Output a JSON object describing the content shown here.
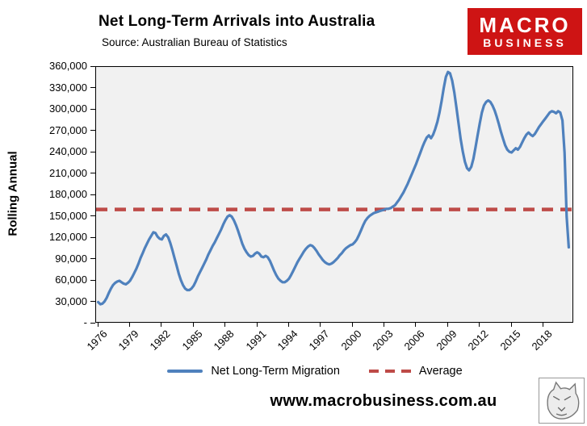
{
  "header": {
    "title": "Net Long-Term Arrivals into Australia",
    "source": "Source: Australian Bureau of Statistics"
  },
  "logo": {
    "line1": "MACRO",
    "line2": "BUSINESS",
    "bg": "#CE1414"
  },
  "footer": {
    "url": "www.macrobusiness.com.au"
  },
  "chart_data": {
    "type": "line",
    "title": "Net Long-Term Arrivals into Australia",
    "subtitle": "Source: Australian Bureau of Statistics",
    "xlabel": "",
    "ylabel": "Rolling Annual",
    "ylim": [
      0,
      360000
    ],
    "y_tick_step": 30000,
    "y_tick_labels": [
      "-",
      "30,000",
      "60,000",
      "90,000",
      "120,000",
      "150,000",
      "180,000",
      "210,000",
      "240,000",
      "270,000",
      "300,000",
      "330,000",
      "360,000"
    ],
    "x_tick_years": [
      1976,
      1979,
      1982,
      1985,
      1988,
      1991,
      1994,
      1997,
      2000,
      2003,
      2006,
      2009,
      2012,
      2015,
      2018
    ],
    "x_range": [
      1975.8,
      2020.9
    ],
    "grid": false,
    "plot_bg": "#f1f1f1",
    "legend_position": "bottom",
    "average": {
      "name": "Average",
      "color": "#BE4B48",
      "value": 160000
    },
    "series": [
      {
        "name": "Net Long-Term Migration",
        "color": "#4F81BD",
        "points": [
          [
            1976.0,
            30000
          ],
          [
            1976.2,
            27000
          ],
          [
            1976.4,
            28000
          ],
          [
            1976.6,
            31000
          ],
          [
            1976.8,
            36000
          ],
          [
            1977.0,
            43000
          ],
          [
            1977.2,
            49000
          ],
          [
            1977.4,
            54000
          ],
          [
            1977.6,
            57000
          ],
          [
            1977.8,
            59000
          ],
          [
            1978.0,
            60000
          ],
          [
            1978.2,
            58000
          ],
          [
            1978.4,
            56000
          ],
          [
            1978.6,
            55000
          ],
          [
            1978.8,
            57000
          ],
          [
            1979.0,
            60000
          ],
          [
            1979.2,
            65000
          ],
          [
            1979.4,
            71000
          ],
          [
            1979.6,
            77000
          ],
          [
            1979.8,
            84000
          ],
          [
            1980.0,
            92000
          ],
          [
            1980.2,
            99000
          ],
          [
            1980.4,
            106000
          ],
          [
            1980.6,
            112000
          ],
          [
            1980.8,
            118000
          ],
          [
            1981.0,
            123000
          ],
          [
            1981.2,
            128000
          ],
          [
            1981.4,
            127000
          ],
          [
            1981.6,
            122000
          ],
          [
            1981.8,
            119000
          ],
          [
            1982.0,
            118000
          ],
          [
            1982.2,
            123000
          ],
          [
            1982.4,
            125000
          ],
          [
            1982.6,
            121000
          ],
          [
            1982.8,
            113000
          ],
          [
            1983.0,
            103000
          ],
          [
            1983.2,
            92000
          ],
          [
            1983.4,
            81000
          ],
          [
            1983.6,
            70000
          ],
          [
            1983.8,
            61000
          ],
          [
            1984.0,
            54000
          ],
          [
            1984.2,
            49000
          ],
          [
            1984.4,
            47000
          ],
          [
            1984.6,
            47000
          ],
          [
            1984.8,
            49000
          ],
          [
            1985.0,
            53000
          ],
          [
            1985.2,
            59000
          ],
          [
            1985.4,
            66000
          ],
          [
            1985.6,
            72000
          ],
          [
            1985.8,
            78000
          ],
          [
            1986.0,
            84000
          ],
          [
            1986.2,
            90000
          ],
          [
            1986.4,
            97000
          ],
          [
            1986.6,
            103000
          ],
          [
            1986.8,
            109000
          ],
          [
            1987.0,
            114000
          ],
          [
            1987.2,
            120000
          ],
          [
            1987.4,
            126000
          ],
          [
            1987.6,
            132000
          ],
          [
            1987.8,
            139000
          ],
          [
            1988.0,
            145000
          ],
          [
            1988.2,
            150000
          ],
          [
            1988.4,
            152000
          ],
          [
            1988.6,
            150000
          ],
          [
            1988.8,
            145000
          ],
          [
            1989.0,
            138000
          ],
          [
            1989.2,
            130000
          ],
          [
            1989.4,
            121000
          ],
          [
            1989.6,
            112000
          ],
          [
            1989.8,
            105000
          ],
          [
            1990.0,
            100000
          ],
          [
            1990.2,
            96000
          ],
          [
            1990.4,
            94000
          ],
          [
            1990.6,
            95000
          ],
          [
            1990.8,
            98000
          ],
          [
            1991.0,
            100000
          ],
          [
            1991.2,
            98000
          ],
          [
            1991.4,
            94000
          ],
          [
            1991.6,
            93000
          ],
          [
            1991.8,
            95000
          ],
          [
            1992.0,
            93000
          ],
          [
            1992.2,
            88000
          ],
          [
            1992.4,
            81000
          ],
          [
            1992.6,
            74000
          ],
          [
            1992.8,
            68000
          ],
          [
            1993.0,
            63000
          ],
          [
            1993.2,
            60000
          ],
          [
            1993.4,
            58000
          ],
          [
            1993.6,
            58000
          ],
          [
            1993.8,
            60000
          ],
          [
            1994.0,
            63000
          ],
          [
            1994.2,
            68000
          ],
          [
            1994.4,
            74000
          ],
          [
            1994.6,
            80000
          ],
          [
            1994.8,
            86000
          ],
          [
            1995.0,
            91000
          ],
          [
            1995.2,
            96000
          ],
          [
            1995.4,
            101000
          ],
          [
            1995.6,
            105000
          ],
          [
            1995.8,
            108000
          ],
          [
            1996.0,
            110000
          ],
          [
            1996.2,
            109000
          ],
          [
            1996.4,
            106000
          ],
          [
            1996.6,
            102000
          ],
          [
            1996.8,
            97000
          ],
          [
            1997.0,
            93000
          ],
          [
            1997.2,
            89000
          ],
          [
            1997.4,
            86000
          ],
          [
            1997.6,
            84000
          ],
          [
            1997.8,
            83000
          ],
          [
            1998.0,
            84000
          ],
          [
            1998.2,
            86000
          ],
          [
            1998.4,
            89000
          ],
          [
            1998.6,
            92000
          ],
          [
            1998.8,
            96000
          ],
          [
            1999.0,
            99000
          ],
          [
            1999.2,
            103000
          ],
          [
            1999.4,
            106000
          ],
          [
            1999.6,
            108000
          ],
          [
            1999.8,
            110000
          ],
          [
            2000.0,
            111000
          ],
          [
            2000.2,
            114000
          ],
          [
            2000.4,
            118000
          ],
          [
            2000.6,
            124000
          ],
          [
            2000.8,
            131000
          ],
          [
            2001.0,
            138000
          ],
          [
            2001.2,
            144000
          ],
          [
            2001.4,
            148000
          ],
          [
            2001.6,
            151000
          ],
          [
            2001.8,
            153000
          ],
          [
            2002.0,
            155000
          ],
          [
            2002.2,
            156000
          ],
          [
            2002.4,
            157000
          ],
          [
            2002.6,
            158000
          ],
          [
            2002.8,
            159000
          ],
          [
            2003.0,
            160000
          ],
          [
            2003.2,
            161000
          ],
          [
            2003.4,
            161000
          ],
          [
            2003.6,
            162000
          ],
          [
            2003.8,
            164000
          ],
          [
            2004.0,
            166000
          ],
          [
            2004.2,
            170000
          ],
          [
            2004.4,
            174000
          ],
          [
            2004.6,
            179000
          ],
          [
            2004.8,
            184000
          ],
          [
            2005.0,
            190000
          ],
          [
            2005.2,
            196000
          ],
          [
            2005.4,
            203000
          ],
          [
            2005.6,
            210000
          ],
          [
            2005.8,
            217000
          ],
          [
            2006.0,
            224000
          ],
          [
            2006.2,
            232000
          ],
          [
            2006.4,
            240000
          ],
          [
            2006.6,
            248000
          ],
          [
            2006.8,
            255000
          ],
          [
            2007.0,
            261000
          ],
          [
            2007.2,
            264000
          ],
          [
            2007.4,
            260000
          ],
          [
            2007.6,
            265000
          ],
          [
            2007.8,
            273000
          ],
          [
            2008.0,
            283000
          ],
          [
            2008.2,
            296000
          ],
          [
            2008.4,
            312000
          ],
          [
            2008.6,
            330000
          ],
          [
            2008.8,
            346000
          ],
          [
            2009.0,
            353000
          ],
          [
            2009.2,
            351000
          ],
          [
            2009.4,
            341000
          ],
          [
            2009.6,
            324000
          ],
          [
            2009.8,
            303000
          ],
          [
            2010.0,
            281000
          ],
          [
            2010.2,
            259000
          ],
          [
            2010.4,
            241000
          ],
          [
            2010.6,
            227000
          ],
          [
            2010.8,
            218000
          ],
          [
            2011.0,
            215000
          ],
          [
            2011.2,
            220000
          ],
          [
            2011.4,
            231000
          ],
          [
            2011.6,
            247000
          ],
          [
            2011.8,
            264000
          ],
          [
            2012.0,
            281000
          ],
          [
            2012.2,
            296000
          ],
          [
            2012.4,
            306000
          ],
          [
            2012.6,
            311000
          ],
          [
            2012.8,
            313000
          ],
          [
            2013.0,
            311000
          ],
          [
            2013.2,
            306000
          ],
          [
            2013.4,
            299000
          ],
          [
            2013.6,
            290000
          ],
          [
            2013.8,
            280000
          ],
          [
            2014.0,
            269000
          ],
          [
            2014.2,
            259000
          ],
          [
            2014.4,
            250000
          ],
          [
            2014.6,
            244000
          ],
          [
            2014.8,
            241000
          ],
          [
            2015.0,
            240000
          ],
          [
            2015.2,
            243000
          ],
          [
            2015.4,
            246000
          ],
          [
            2015.6,
            244000
          ],
          [
            2015.8,
            248000
          ],
          [
            2016.0,
            254000
          ],
          [
            2016.2,
            260000
          ],
          [
            2016.4,
            265000
          ],
          [
            2016.6,
            268000
          ],
          [
            2016.8,
            265000
          ],
          [
            2017.0,
            263000
          ],
          [
            2017.2,
            266000
          ],
          [
            2017.4,
            271000
          ],
          [
            2017.6,
            276000
          ],
          [
            2017.8,
            280000
          ],
          [
            2018.0,
            284000
          ],
          [
            2018.2,
            288000
          ],
          [
            2018.4,
            292000
          ],
          [
            2018.6,
            296000
          ],
          [
            2018.8,
            298000
          ],
          [
            2019.0,
            297000
          ],
          [
            2019.2,
            295000
          ],
          [
            2019.4,
            298000
          ],
          [
            2019.6,
            296000
          ],
          [
            2019.8,
            285000
          ],
          [
            2020.0,
            240000
          ],
          [
            2020.2,
            150000
          ],
          [
            2020.4,
            107000
          ]
        ]
      }
    ]
  }
}
